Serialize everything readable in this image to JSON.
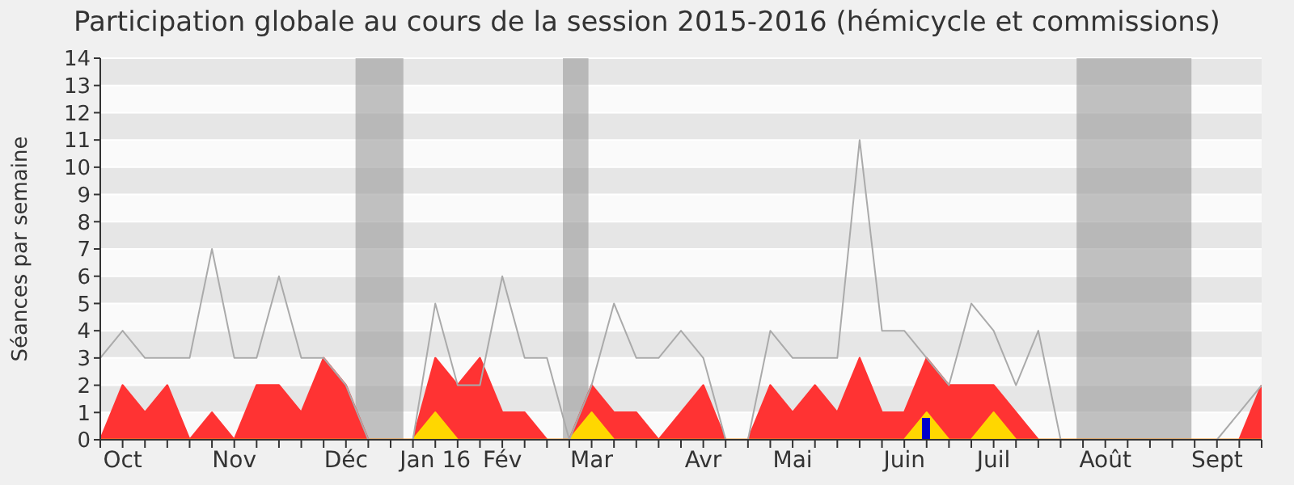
{
  "chart_data": {
    "type": "area",
    "title": "Participation globale au cours de la session 2015-2016 (hémicycle et commissions)",
    "ylabel": "Séances par semaine",
    "x": [
      "2015-09-29",
      "2015-10-06",
      "2015-10-13",
      "2015-10-20",
      "2015-10-27",
      "2015-11-03",
      "2015-11-10",
      "2015-11-17",
      "2015-11-24",
      "2015-12-01",
      "2015-12-08",
      "2015-12-15",
      "2015-12-22",
      "2015-12-29",
      "2016-01-05",
      "2016-01-12",
      "2016-01-19",
      "2016-01-26",
      "2016-02-02",
      "2016-02-09",
      "2016-02-16",
      "2016-02-23",
      "2016-03-01",
      "2016-03-08",
      "2016-03-15",
      "2016-03-22",
      "2016-03-29",
      "2016-04-05",
      "2016-04-12",
      "2016-04-19",
      "2016-04-26",
      "2016-05-03",
      "2016-05-10",
      "2016-05-17",
      "2016-05-24",
      "2016-05-31",
      "2016-06-07",
      "2016-06-14",
      "2016-06-21",
      "2016-06-28",
      "2016-07-05",
      "2016-07-12",
      "2016-07-19",
      "2016-07-26",
      "2016-08-02",
      "2016-08-09",
      "2016-08-16",
      "2016-08-23",
      "2016-08-30",
      "2016-09-06",
      "2016-09-13",
      "2016-09-20",
      "2016-09-27"
    ],
    "series": [
      {
        "type": "line",
        "color": "#aaaaaa",
        "values": [
          3,
          4,
          3,
          3,
          3,
          7,
          3,
          3,
          6,
          3,
          3,
          2,
          0,
          0,
          0,
          5,
          2,
          2,
          6,
          3,
          3,
          0,
          2,
          5,
          3,
          3,
          4,
          3,
          0,
          0,
          4,
          3,
          3,
          3,
          11,
          4,
          4,
          3,
          2,
          5,
          4,
          2,
          4,
          0,
          0,
          0,
          0,
          0,
          0,
          0,
          0,
          1,
          2
        ]
      },
      {
        "color": "#ff3333",
        "values": [
          0,
          2,
          1,
          2,
          0,
          1,
          0,
          2,
          2,
          1,
          3,
          2,
          0,
          0,
          0,
          3,
          2,
          3,
          1,
          1,
          0,
          0,
          2,
          1,
          1,
          0,
          1,
          2,
          0,
          0,
          2,
          1,
          2,
          1,
          3,
          1,
          1,
          3,
          2,
          2,
          2,
          1,
          0,
          0,
          0,
          0,
          0,
          0,
          0,
          0,
          0,
          0,
          2
        ]
      },
      {
        "color": "#ffd700",
        "values": [
          0,
          0,
          0,
          0,
          0,
          0,
          0,
          0,
          0,
          0,
          0,
          0,
          0,
          0,
          0,
          1,
          0,
          0,
          0,
          0,
          0,
          0,
          1,
          0,
          0,
          0,
          0,
          0,
          0,
          0,
          0,
          0,
          0,
          0,
          0,
          0,
          0,
          1,
          0,
          0,
          1,
          0,
          0,
          0,
          0,
          0,
          0,
          0,
          0,
          0,
          0,
          0,
          0
        ]
      },
      {
        "type": "bar",
        "color": "#0000cc",
        "values": [
          null,
          null,
          null,
          null,
          null,
          null,
          null,
          null,
          null,
          null,
          null,
          null,
          null,
          null,
          null,
          null,
          null,
          null,
          null,
          null,
          null,
          null,
          null,
          null,
          null,
          null,
          null,
          null,
          null,
          null,
          null,
          null,
          null,
          null,
          null,
          null,
          null,
          0.8,
          null,
          null,
          null,
          null,
          null,
          null,
          null,
          null,
          null,
          null,
          null,
          null,
          null,
          null,
          null
        ]
      }
    ],
    "xlim": [
      "2015-09-29",
      "2016-09-27"
    ],
    "xticks": [
      {
        "value": "2015-09-29",
        "label": null
      },
      {
        "value": "2015-10-06",
        "label": "Oct"
      },
      {
        "value": "2015-10-13",
        "label": null
      },
      {
        "value": "2015-10-20",
        "label": null
      },
      {
        "value": "2015-10-27",
        "label": null
      },
      {
        "value": "2015-11-03",
        "label": null
      },
      {
        "value": "2015-11-10",
        "label": "Nov"
      },
      {
        "value": "2015-11-17",
        "label": null
      },
      {
        "value": "2015-11-24",
        "label": null
      },
      {
        "value": "2015-12-01",
        "label": null
      },
      {
        "value": "2015-12-08",
        "label": null
      },
      {
        "value": "2015-12-15",
        "label": "Déc"
      },
      {
        "value": "2015-12-22",
        "label": null
      },
      {
        "value": "2015-12-29",
        "label": null
      },
      {
        "value": "2016-01-05",
        "label": null
      },
      {
        "value": "2016-01-12",
        "label": "Jan 16"
      },
      {
        "value": "2016-01-19",
        "label": null
      },
      {
        "value": "2016-01-26",
        "label": null
      },
      {
        "value": "2016-02-02",
        "label": "Fév"
      },
      {
        "value": "2016-02-09",
        "label": null
      },
      {
        "value": "2016-02-16",
        "label": null
      },
      {
        "value": "2016-02-23",
        "label": null
      },
      {
        "value": "2016-03-01",
        "label": "Mar"
      },
      {
        "value": "2016-03-08",
        "label": null
      },
      {
        "value": "2016-03-15",
        "label": null
      },
      {
        "value": "2016-03-22",
        "label": null
      },
      {
        "value": "2016-03-29",
        "label": null
      },
      {
        "value": "2016-04-05",
        "label": "Avr"
      },
      {
        "value": "2016-04-12",
        "label": null
      },
      {
        "value": "2016-04-19",
        "label": null
      },
      {
        "value": "2016-04-26",
        "label": null
      },
      {
        "value": "2016-05-03",
        "label": "Mai"
      },
      {
        "value": "2016-05-10",
        "label": null
      },
      {
        "value": "2016-05-17",
        "label": null
      },
      {
        "value": "2016-05-24",
        "label": null
      },
      {
        "value": "2016-05-31",
        "label": null
      },
      {
        "value": "2016-06-07",
        "label": "Juin"
      },
      {
        "value": "2016-06-14",
        "label": null
      },
      {
        "value": "2016-06-21",
        "label": null
      },
      {
        "value": "2016-06-28",
        "label": null
      },
      {
        "value": "2016-07-05",
        "label": "Juil"
      },
      {
        "value": "2016-07-12",
        "label": null
      },
      {
        "value": "2016-07-19",
        "label": null
      },
      {
        "value": "2016-07-26",
        "label": null
      },
      {
        "value": "2016-08-02",
        "label": null
      },
      {
        "value": "2016-08-09",
        "label": "Août"
      },
      {
        "value": "2016-08-16",
        "label": null
      },
      {
        "value": "2016-08-23",
        "label": null
      },
      {
        "value": "2016-08-30",
        "label": null
      },
      {
        "value": "2016-09-06",
        "label": null
      },
      {
        "value": "2016-09-13",
        "label": "Sept"
      },
      {
        "value": "2016-09-20",
        "label": null
      },
      {
        "value": "2016-09-27",
        "label": null
      }
    ],
    "ylim": [
      0,
      14
    ],
    "yticks": [
      0,
      1,
      2,
      3,
      4,
      5,
      6,
      7,
      8,
      9,
      10,
      11,
      12,
      13,
      14
    ],
    "grid": "y",
    "legend": false,
    "bands": [
      {
        "axis": "x",
        "from": "2015-12-18",
        "to": "2016-01-02",
        "color": "#999999"
      },
      {
        "axis": "x",
        "from": "2016-02-21",
        "to": "2016-02-29",
        "color": "#999999"
      },
      {
        "axis": "x",
        "from": "2016-07-31",
        "to": "2016-09-05",
        "color": "#999999"
      }
    ]
  }
}
